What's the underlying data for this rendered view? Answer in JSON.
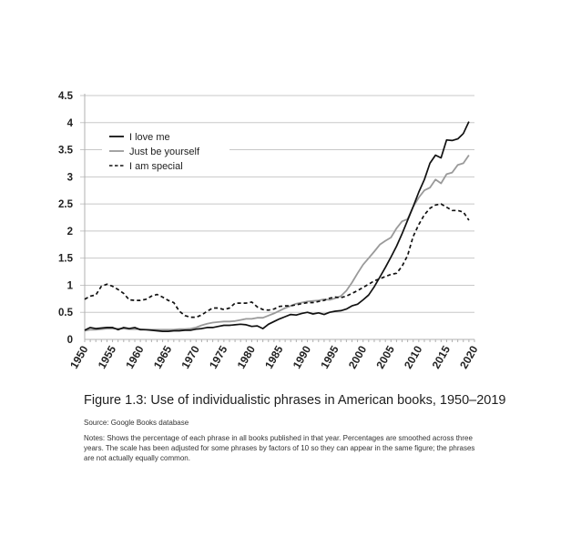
{
  "chart_data": {
    "type": "line",
    "title": "Figure 1.3: Use of individualistic phrases in American books, 1950–2019",
    "xlabel": "",
    "ylabel": "",
    "xlim": [
      1950,
      2020
    ],
    "ylim": [
      0,
      4.5
    ],
    "grid": true,
    "legend_position": "top-left",
    "y_ticks": [
      "0",
      "0.5",
      "1",
      "1.5",
      "2",
      "2.5",
      "3",
      "3.5",
      "4",
      "4.5"
    ],
    "x_ticks": [
      "1950",
      "1955",
      "1960",
      "1965",
      "1970",
      "1975",
      "1980",
      "1985",
      "1990",
      "1995",
      "2000",
      "2005",
      "2010",
      "2015",
      "2020"
    ],
    "x": [
      1950,
      1951,
      1952,
      1953,
      1954,
      1955,
      1956,
      1957,
      1958,
      1959,
      1960,
      1961,
      1962,
      1963,
      1964,
      1965,
      1966,
      1967,
      1968,
      1969,
      1970,
      1971,
      1972,
      1973,
      1974,
      1975,
      1976,
      1977,
      1978,
      1979,
      1980,
      1981,
      1982,
      1983,
      1984,
      1985,
      1986,
      1987,
      1988,
      1989,
      1990,
      1991,
      1992,
      1993,
      1994,
      1995,
      1996,
      1997,
      1998,
      1999,
      2000,
      2001,
      2002,
      2003,
      2004,
      2005,
      2006,
      2007,
      2008,
      2009,
      2010,
      2011,
      2012,
      2013,
      2014,
      2015,
      2016,
      2017,
      2018,
      2019
    ],
    "series": [
      {
        "name": "I love me",
        "style": "solid-black",
        "color": "#111111",
        "values": [
          0.17,
          0.22,
          0.2,
          0.21,
          0.22,
          0.22,
          0.18,
          0.22,
          0.2,
          0.22,
          0.18,
          0.18,
          0.17,
          0.16,
          0.15,
          0.15,
          0.16,
          0.16,
          0.17,
          0.17,
          0.19,
          0.2,
          0.22,
          0.22,
          0.24,
          0.26,
          0.26,
          0.27,
          0.28,
          0.27,
          0.24,
          0.25,
          0.2,
          0.28,
          0.33,
          0.38,
          0.42,
          0.46,
          0.45,
          0.48,
          0.5,
          0.47,
          0.49,
          0.46,
          0.5,
          0.52,
          0.53,
          0.56,
          0.62,
          0.65,
          0.73,
          0.82,
          0.97,
          1.15,
          1.33,
          1.52,
          1.72,
          1.95,
          2.2,
          2.45,
          2.72,
          2.95,
          3.25,
          3.4,
          3.35,
          3.68,
          3.67,
          3.7,
          3.8,
          4.02
        ]
      },
      {
        "name": "Just be yourself",
        "style": "solid-gray",
        "color": "#9a9a9a",
        "values": [
          0.16,
          0.18,
          0.18,
          0.19,
          0.2,
          0.2,
          0.2,
          0.2,
          0.19,
          0.19,
          0.19,
          0.18,
          0.18,
          0.18,
          0.18,
          0.18,
          0.18,
          0.19,
          0.19,
          0.2,
          0.22,
          0.26,
          0.29,
          0.31,
          0.32,
          0.33,
          0.33,
          0.34,
          0.36,
          0.38,
          0.38,
          0.4,
          0.4,
          0.44,
          0.48,
          0.53,
          0.58,
          0.62,
          0.66,
          0.68,
          0.7,
          0.71,
          0.72,
          0.74,
          0.73,
          0.76,
          0.8,
          0.9,
          1.05,
          1.22,
          1.38,
          1.5,
          1.62,
          1.75,
          1.82,
          1.88,
          2.05,
          2.18,
          2.22,
          2.45,
          2.62,
          2.75,
          2.8,
          2.95,
          2.88,
          3.05,
          3.08,
          3.22,
          3.25,
          3.4
        ]
      },
      {
        "name": "I am special",
        "style": "dashed-black",
        "color": "#111111",
        "values": [
          0.74,
          0.8,
          0.82,
          0.98,
          1.02,
          0.98,
          0.92,
          0.85,
          0.73,
          0.72,
          0.72,
          0.74,
          0.8,
          0.83,
          0.78,
          0.72,
          0.68,
          0.52,
          0.44,
          0.41,
          0.41,
          0.45,
          0.52,
          0.58,
          0.58,
          0.55,
          0.58,
          0.67,
          0.67,
          0.67,
          0.69,
          0.6,
          0.55,
          0.54,
          0.56,
          0.61,
          0.62,
          0.62,
          0.64,
          0.66,
          0.68,
          0.68,
          0.7,
          0.72,
          0.76,
          0.78,
          0.77,
          0.8,
          0.85,
          0.9,
          0.96,
          1.02,
          1.08,
          1.12,
          1.16,
          1.2,
          1.22,
          1.35,
          1.55,
          1.9,
          2.12,
          2.3,
          2.42,
          2.48,
          2.5,
          2.44,
          2.38,
          2.38,
          2.35,
          2.2
        ]
      }
    ]
  },
  "source": "Source: Google Books database",
  "notes": "Notes: Shows the percentage of each phrase in all books published in that year. Percentages are smoothed across three years. The scale has been adjusted for some phrases by factors of 10 so they can appear in the same figure; the phrases are not actually equally common."
}
